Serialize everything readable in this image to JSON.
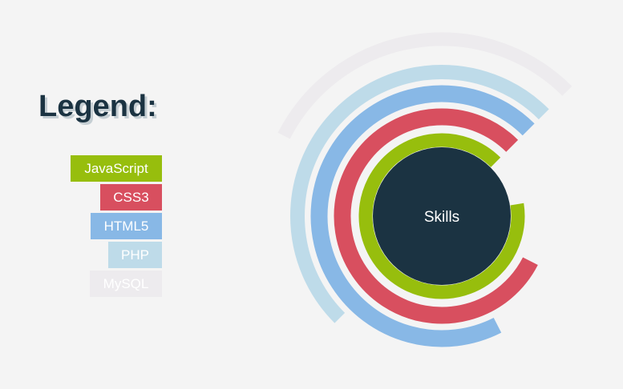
{
  "legend": {
    "title": "Legend:",
    "items": [
      {
        "label": "JavaScript",
        "color": "#97be0d"
      },
      {
        "label": "CSS3",
        "color": "#d84f5f"
      },
      {
        "label": "HTML5",
        "color": "#88b8e6"
      },
      {
        "label": "PHP",
        "color": "#bedbe9"
      },
      {
        "label": "MySQL",
        "color": "#edebee"
      }
    ]
  },
  "chart_data": {
    "type": "radial-bar",
    "center_label": "Skills",
    "center_color": "#1b3342",
    "series": [
      {
        "name": "JavaScript",
        "color": "#97be0d",
        "percent": 90
      },
      {
        "name": "CSS3",
        "color": "#d84f5f",
        "percent": 80
      },
      {
        "name": "HTML5",
        "color": "#88b8e6",
        "percent": 70
      },
      {
        "name": "PHP",
        "color": "#bedbe9",
        "percent": 50
      },
      {
        "name": "MySQL",
        "color": "#edebee",
        "percent": 30
      }
    ]
  }
}
